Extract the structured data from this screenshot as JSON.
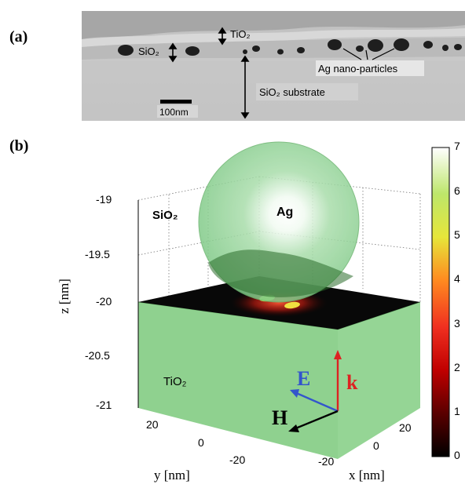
{
  "panel_a": {
    "label": "(a)",
    "annotations": {
      "tio2": "TiO₂",
      "sio2": "SiO₂",
      "ag_particles": "Ag nano-particles",
      "substrate": "SiO₂ substrate",
      "scale_bar": "100nm"
    }
  },
  "panel_b": {
    "label": "(b)",
    "z_axis": {
      "label": "z [nm]",
      "ticks": [
        "-19",
        "-19.5",
        "-20",
        "-20.5",
        "-21"
      ]
    },
    "y_axis": {
      "label": "y [nm]",
      "ticks": [
        "20",
        "0",
        "-20"
      ]
    },
    "x_axis": {
      "label": "x [nm]",
      "ticks": [
        "20",
        "0",
        "-20"
      ]
    },
    "region_labels": {
      "sio2": "SiO₂",
      "tio2": "TiO₂",
      "ag": "Ag"
    },
    "vectors": {
      "e": "E",
      "k": "k",
      "h": "H"
    },
    "colorbar": {
      "ticks": [
        "7",
        "6",
        "5",
        "4",
        "3",
        "2",
        "1",
        "0"
      ],
      "range": [
        0,
        7
      ]
    }
  },
  "colors": {
    "tio2_slab": "#8fd18f",
    "sphere": "#7ecf86",
    "e_vector": "#3355cc",
    "k_vector": "#dd2222",
    "h_vector": "#000000"
  }
}
